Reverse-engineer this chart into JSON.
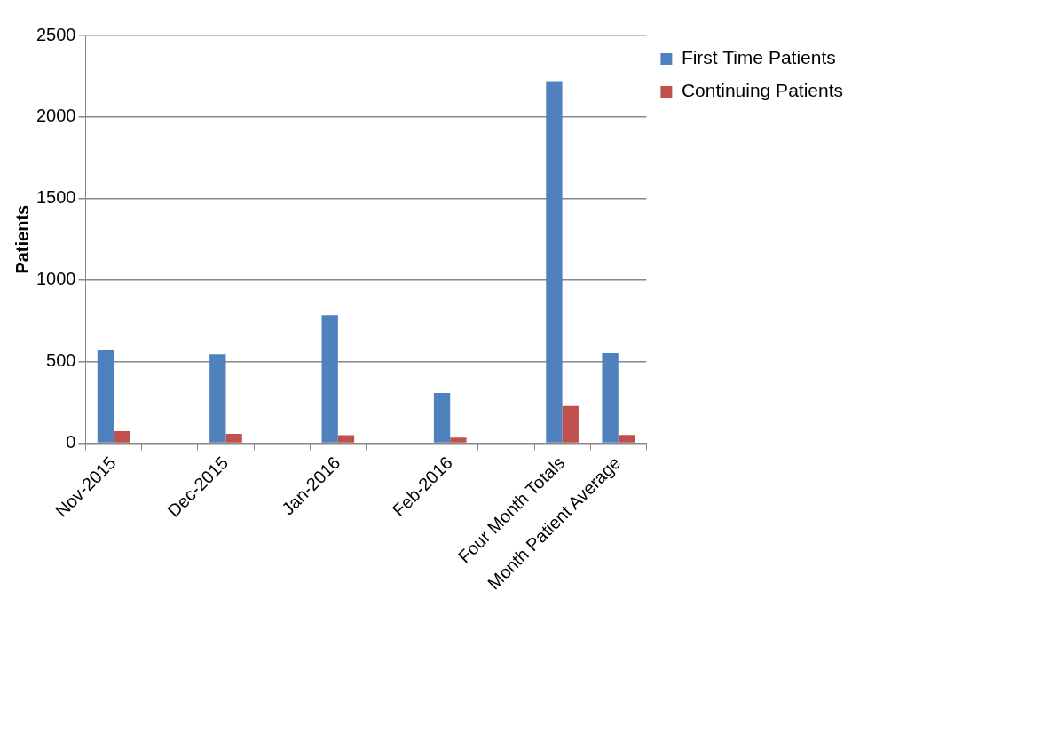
{
  "chart_data": {
    "type": "bar",
    "ylabel": "Patients",
    "categories": [
      "Nov-2015",
      null,
      "Dec-2015",
      null,
      "Jan-2016",
      null,
      "Feb-2016",
      null,
      "Four Month Totals",
      "Month Patient Average"
    ],
    "series": [
      {
        "name": "First Time Patients",
        "color": "#4f81bd",
        "values": [
          573,
          null,
          545,
          null,
          784,
          null,
          307,
          null,
          2220,
          552
        ]
      },
      {
        "name": "Continuing Patients",
        "color": "#c0504d",
        "values": [
          73,
          null,
          57,
          null,
          48,
          null,
          34,
          null,
          227,
          50
        ]
      }
    ],
    "ylim": [
      0,
      2500
    ],
    "yticks": [
      0,
      500,
      1000,
      1500,
      2000,
      2500
    ],
    "grid": "y",
    "legend": "top right"
  }
}
